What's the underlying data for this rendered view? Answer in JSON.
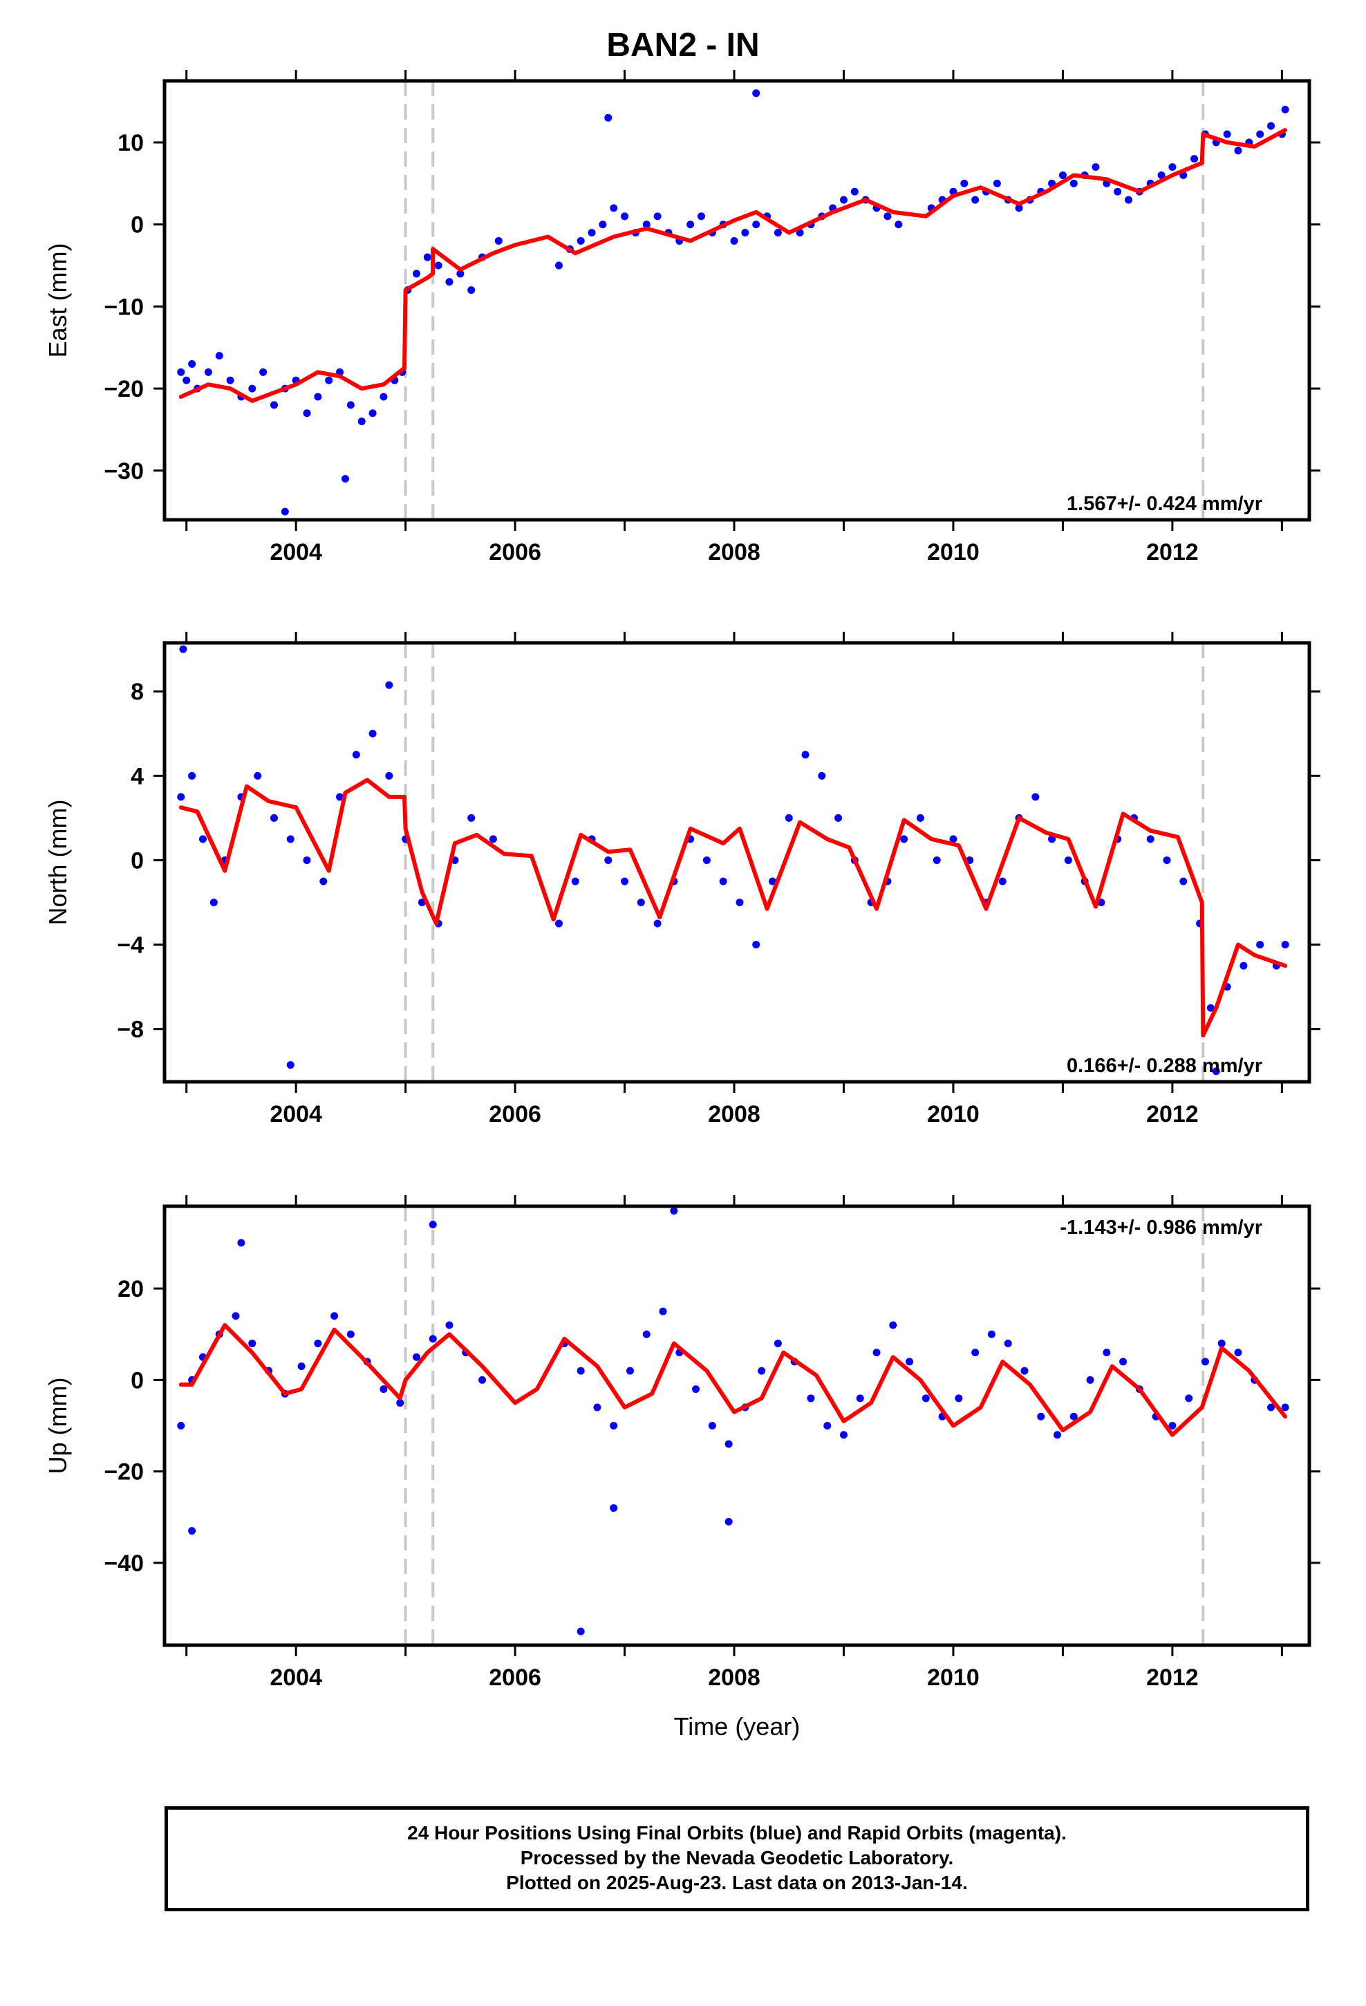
{
  "title": "BAN2 - IN",
  "colors": {
    "data": "#0000ff",
    "model": "#ff0000",
    "break": "#c8c8c8",
    "frame": "#000000"
  },
  "x_axis_label": "Time (year)",
  "x_ticks": [
    "2004",
    "2006",
    "2008",
    "2010",
    "2012"
  ],
  "breaks": [
    2005.0,
    2005.25,
    2012.28
  ],
  "chart_data": [
    {
      "type": "scatter",
      "ylabel": "East (mm)",
      "xlim": [
        2002.8,
        2013.25
      ],
      "ylim": [
        -36,
        17.5
      ],
      "yticks": [
        10,
        0,
        -10,
        -20,
        -30
      ],
      "rate_text": "1.567+/- 0.424 mm/yr",
      "rate_position": "bottom-right",
      "series": [
        {
          "name": "",
          "style": "points",
          "x": [
            2002.95,
            2003.0,
            2003.05,
            2003.1,
            2003.2,
            2003.3,
            2003.4,
            2003.5,
            2003.6,
            2003.7,
            2003.8,
            2003.9,
            2004.0,
            2004.1,
            2004.2,
            2004.3,
            2004.4,
            2004.5,
            2004.6,
            2004.7,
            2004.8,
            2004.9,
            2004.97,
            2005.02,
            2005.1,
            2005.2,
            2005.3,
            2005.4,
            2005.5,
            2005.6,
            2005.7,
            2006.4,
            2006.5,
            2006.6,
            2006.7,
            2006.8,
            2006.9,
            2007.0,
            2007.1,
            2007.2,
            2007.3,
            2007.4,
            2007.5,
            2007.6,
            2007.7,
            2007.8,
            2007.9,
            2008.0,
            2008.1,
            2008.2,
            2008.3,
            2008.4,
            2008.6,
            2008.7,
            2008.8,
            2008.9,
            2009.0,
            2009.1,
            2009.2,
            2009.3,
            2009.4,
            2009.5,
            2009.8,
            2009.9,
            2010.0,
            2010.1,
            2010.2,
            2010.3,
            2010.4,
            2010.5,
            2010.6,
            2010.7,
            2010.8,
            2010.9,
            2011.0,
            2011.1,
            2011.2,
            2011.3,
            2011.4,
            2011.5,
            2011.6,
            2011.7,
            2011.8,
            2011.9,
            2012.0,
            2012.1,
            2012.2,
            2012.3,
            2012.4,
            2012.5,
            2012.6,
            2012.7,
            2012.8,
            2012.9,
            2013.0,
            2013.03,
            2003.9,
            2004.45,
            2006.85,
            2008.2,
            2005.85
          ],
          "y": [
            -18,
            -19,
            -17,
            -20,
            -18,
            -16,
            -19,
            -21,
            -20,
            -18,
            -22,
            -20,
            -19,
            -23,
            -21,
            -19,
            -18,
            -22,
            -24,
            -23,
            -21,
            -19,
            -18,
            -8,
            -6,
            -4,
            -5,
            -7,
            -6,
            -8,
            -4,
            -5,
            -3,
            -2,
            -1,
            0,
            2,
            1,
            -1,
            0,
            1,
            -1,
            -2,
            0,
            1,
            -1,
            0,
            -2,
            -1,
            0,
            1,
            -1,
            -1,
            0,
            1,
            2,
            3,
            4,
            3,
            2,
            1,
            0,
            2,
            3,
            4,
            5,
            3,
            4,
            5,
            3,
            2,
            3,
            4,
            5,
            6,
            5,
            6,
            7,
            5,
            4,
            3,
            4,
            5,
            6,
            7,
            6,
            8,
            11,
            10,
            11,
            9,
            10,
            11,
            12,
            11,
            14,
            -35,
            -31,
            13,
            16,
            -2
          ]
        },
        {
          "name": "",
          "style": "line",
          "x": [
            2002.95,
            2003.2,
            2003.4,
            2003.6,
            2003.8,
            2004.0,
            2004.2,
            2004.4,
            2004.6,
            2004.8,
            2004.99,
            2005.0,
            2005.2,
            2005.249,
            2005.25,
            2005.5,
            2005.8,
            2006.0,
            2006.3,
            2006.55,
            2006.9,
            2007.2,
            2007.6,
            2008.0,
            2008.2,
            2008.5,
            2008.9,
            2009.2,
            2009.45,
            2009.75,
            2010.0,
            2010.25,
            2010.6,
            2010.85,
            2011.1,
            2011.4,
            2011.7,
            2012.0,
            2012.27,
            2012.28,
            2012.5,
            2012.75,
            2013.03
          ],
          "y": [
            -21,
            -19.5,
            -20,
            -21.5,
            -20.5,
            -19.5,
            -18,
            -18.5,
            -20,
            -19.5,
            -17.5,
            -8,
            -6.5,
            -6,
            -3,
            -5.5,
            -3.5,
            -2.5,
            -1.5,
            -3.5,
            -1.5,
            -0.5,
            -2,
            0.5,
            1.5,
            -1,
            1.5,
            3,
            1.5,
            1,
            3.5,
            4.5,
            2.5,
            4,
            6,
            5.5,
            4,
            6,
            7.5,
            11,
            10,
            9.5,
            11.5
          ]
        }
      ]
    },
    {
      "type": "scatter",
      "ylabel": "North (mm)",
      "xlim": [
        2002.8,
        2013.25
      ],
      "ylim": [
        -10.5,
        10.3
      ],
      "yticks": [
        8,
        4,
        0,
        -4,
        -8
      ],
      "rate_text": "0.166+/- 0.288 mm/yr",
      "rate_position": "bottom-right",
      "series": [
        {
          "name": "",
          "style": "points",
          "x": [
            2002.95,
            2003.05,
            2003.15,
            2003.25,
            2003.35,
            2003.5,
            2003.65,
            2003.8,
            2003.95,
            2004.1,
            2004.25,
            2004.4,
            2004.55,
            2004.7,
            2004.85,
            2005.0,
            2005.15,
            2005.3,
            2005.45,
            2005.6,
            2005.8,
            2006.4,
            2006.55,
            2006.7,
            2006.85,
            2007.0,
            2007.15,
            2007.3,
            2007.45,
            2007.6,
            2007.75,
            2007.9,
            2008.05,
            2008.2,
            2008.35,
            2008.5,
            2008.65,
            2008.8,
            2008.95,
            2009.1,
            2009.25,
            2009.4,
            2009.55,
            2009.7,
            2009.85,
            2010.0,
            2010.15,
            2010.3,
            2010.45,
            2010.6,
            2010.75,
            2010.9,
            2011.05,
            2011.2,
            2011.35,
            2011.5,
            2011.65,
            2011.8,
            2011.95,
            2012.1,
            2012.25,
            2012.35,
            2012.5,
            2012.65,
            2012.8,
            2012.95,
            2013.03,
            2002.97,
            2003.95,
            2004.85,
            2012.4
          ],
          "y": [
            3,
            4,
            1,
            -2,
            0,
            3,
            4,
            2,
            1,
            0,
            -1,
            3,
            5,
            6,
            4,
            1,
            -2,
            -3,
            0,
            2,
            1,
            -3,
            -1,
            1,
            0,
            -1,
            -2,
            -3,
            -1,
            1,
            0,
            -1,
            -2,
            -4,
            -1,
            2,
            5,
            4,
            2,
            0,
            -2,
            -1,
            1,
            2,
            0,
            1,
            0,
            -2,
            -1,
            2,
            3,
            1,
            0,
            -1,
            -2,
            1,
            2,
            1,
            0,
            -1,
            -3,
            -7,
            -6,
            -5,
            -4,
            -5,
            -4,
            10,
            -9.7,
            8.3,
            -10
          ]
        },
        {
          "name": "",
          "style": "line",
          "x": [
            2002.95,
            2003.1,
            2003.35,
            2003.55,
            2003.75,
            2004.0,
            2004.3,
            2004.45,
            2004.65,
            2004.85,
            2004.99,
            2005.0,
            2005.15,
            2005.28,
            2005.45,
            2005.65,
            2005.9,
            2006.15,
            2006.35,
            2006.6,
            2006.85,
            2007.05,
            2007.32,
            2007.6,
            2007.9,
            2008.05,
            2008.3,
            2008.6,
            2008.85,
            2009.05,
            2009.3,
            2009.55,
            2009.8,
            2010.05,
            2010.3,
            2010.6,
            2010.85,
            2011.05,
            2011.3,
            2011.55,
            2011.8,
            2012.05,
            2012.27,
            2012.28,
            2012.4,
            2012.6,
            2012.75,
            2013.03
          ],
          "y": [
            2.5,
            2.3,
            -0.5,
            3.5,
            2.8,
            2.5,
            -0.5,
            3.2,
            3.8,
            3.0,
            3.0,
            1.5,
            -1.5,
            -3,
            0.8,
            1.2,
            0.3,
            0.2,
            -2.8,
            1.2,
            0.4,
            0.5,
            -2.7,
            1.5,
            0.8,
            1.5,
            -2.3,
            1.8,
            1.0,
            0.6,
            -2.3,
            1.9,
            1.0,
            0.7,
            -2.3,
            2.0,
            1.3,
            1.0,
            -2.2,
            2.2,
            1.4,
            1.1,
            -2,
            -8.3,
            -7,
            -4,
            -4.5,
            -5
          ]
        }
      ]
    },
    {
      "type": "scatter",
      "ylabel": "Up (mm)",
      "xlim": [
        2002.8,
        2013.25
      ],
      "ylim": [
        -58,
        38
      ],
      "yticks": [
        20,
        0,
        -20,
        -40
      ],
      "rate_text": "-1.143+/- 0.986 mm/yr",
      "rate_position": "top-right",
      "series": [
        {
          "name": "",
          "style": "points",
          "x": [
            2002.95,
            2003.05,
            2003.15,
            2003.3,
            2003.45,
            2003.6,
            2003.75,
            2003.9,
            2004.05,
            2004.2,
            2004.35,
            2004.5,
            2004.65,
            2004.8,
            2004.95,
            2005.1,
            2005.25,
            2005.4,
            2005.55,
            2005.7,
            2006.45,
            2006.6,
            2006.75,
            2006.9,
            2007.05,
            2007.2,
            2007.35,
            2007.5,
            2007.65,
            2007.8,
            2007.95,
            2008.1,
            2008.25,
            2008.4,
            2008.55,
            2008.7,
            2008.85,
            2009.0,
            2009.15,
            2009.3,
            2009.45,
            2009.6,
            2009.75,
            2009.9,
            2010.05,
            2010.2,
            2010.35,
            2010.5,
            2010.65,
            2010.8,
            2010.95,
            2011.1,
            2011.25,
            2011.4,
            2011.55,
            2011.7,
            2011.85,
            2012.0,
            2012.15,
            2012.3,
            2012.45,
            2012.6,
            2012.75,
            2012.9,
            2013.03,
            2003.05,
            2003.5,
            2005.25,
            2006.6,
            2007.45,
            2007.95,
            2006.9
          ],
          "y": [
            -10,
            0,
            5,
            10,
            14,
            8,
            2,
            -3,
            3,
            8,
            14,
            10,
            4,
            -2,
            -5,
            5,
            9,
            12,
            6,
            0,
            8,
            2,
            -6,
            -10,
            2,
            10,
            15,
            6,
            -2,
            -10,
            -14,
            -6,
            2,
            8,
            4,
            -4,
            -10,
            -12,
            -4,
            6,
            12,
            4,
            -4,
            -8,
            -4,
            6,
            10,
            8,
            2,
            -8,
            -12,
            -8,
            0,
            6,
            4,
            -2,
            -8,
            -10,
            -4,
            4,
            8,
            6,
            0,
            -6,
            -6,
            -33,
            30,
            34,
            -55,
            37,
            -31,
            -28
          ]
        },
        {
          "name": "",
          "style": "line",
          "x": [
            2002.95,
            2003.05,
            2003.35,
            2003.6,
            2003.9,
            2004.05,
            2004.35,
            2004.6,
            2004.95,
            2005.0,
            2005.2,
            2005.4,
            2005.7,
            2006.0,
            2006.2,
            2006.45,
            2006.75,
            2007.0,
            2007.25,
            2007.45,
            2007.75,
            2008.0,
            2008.25,
            2008.45,
            2008.75,
            2009.0,
            2009.25,
            2009.45,
            2009.7,
            2010.0,
            2010.25,
            2010.45,
            2010.7,
            2011.0,
            2011.25,
            2011.45,
            2011.7,
            2012.0,
            2012.27,
            2012.45,
            2012.7,
            2013.03
          ],
          "y": [
            -1,
            -1,
            12,
            6,
            -3,
            -2,
            11,
            5,
            -4,
            0,
            6,
            10,
            3,
            -5,
            -2,
            9,
            3,
            -6,
            -3,
            8,
            2,
            -7,
            -4,
            6,
            1,
            -9,
            -5,
            5,
            0,
            -10,
            -6,
            4,
            -1,
            -11,
            -7,
            3,
            -2,
            -12,
            -6,
            7,
            2,
            -8
          ]
        }
      ]
    }
  ],
  "footer": {
    "line1": "24 Hour Positions Using Final Orbits (blue) and Rapid Orbits (magenta).",
    "line2": "Processed by the Nevada Geodetic Laboratory.",
    "line3": "Plotted on 2025-Aug-23. Last data on 2013-Jan-14."
  }
}
